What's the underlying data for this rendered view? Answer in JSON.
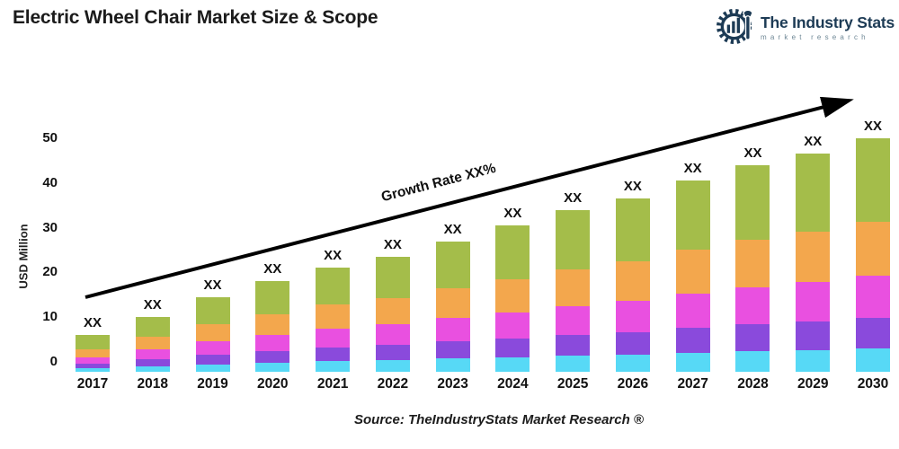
{
  "title": "Electric Wheel Chair Market Size & Scope",
  "brand": {
    "name": "The Industry Stats",
    "tagline": "market research",
    "color": "#1d3b55",
    "tagline_color": "#6e8795"
  },
  "chart_data": {
    "type": "bar",
    "stacked": true,
    "grid": false,
    "ylabel": "USD Million",
    "ylim": [
      0,
      50
    ],
    "yticks": [
      0,
      10,
      20,
      30,
      40,
      50
    ],
    "categories": [
      "2017",
      "2018",
      "2019",
      "2020",
      "2021",
      "2022",
      "2023",
      "2024",
      "2025",
      "2026",
      "2027",
      "2028",
      "2029",
      "2030"
    ],
    "bar_value_label": "XX",
    "totals_usd_million_estimated": [
      6,
      10,
      14.5,
      18,
      21,
      23.5,
      27,
      30.5,
      34,
      36.5,
      40.5,
      44,
      46.5,
      50
    ],
    "series": [
      {
        "name": "segment-cyan",
        "color": "#57D9F6",
        "fraction": 0.1
      },
      {
        "name": "segment-purple",
        "color": "#8A4ADC",
        "fraction": 0.13
      },
      {
        "name": "segment-magenta",
        "color": "#E950E0",
        "fraction": 0.18
      },
      {
        "name": "segment-orange",
        "color": "#F3A74D",
        "fraction": 0.23
      },
      {
        "name": "segment-green",
        "color": "#A4BD4A",
        "fraction": 0.36
      }
    ],
    "annotation": {
      "growth_label": "Growth Rate XX%"
    },
    "legend": "none"
  },
  "source": "Source: TheIndustryStats Market Research ®"
}
